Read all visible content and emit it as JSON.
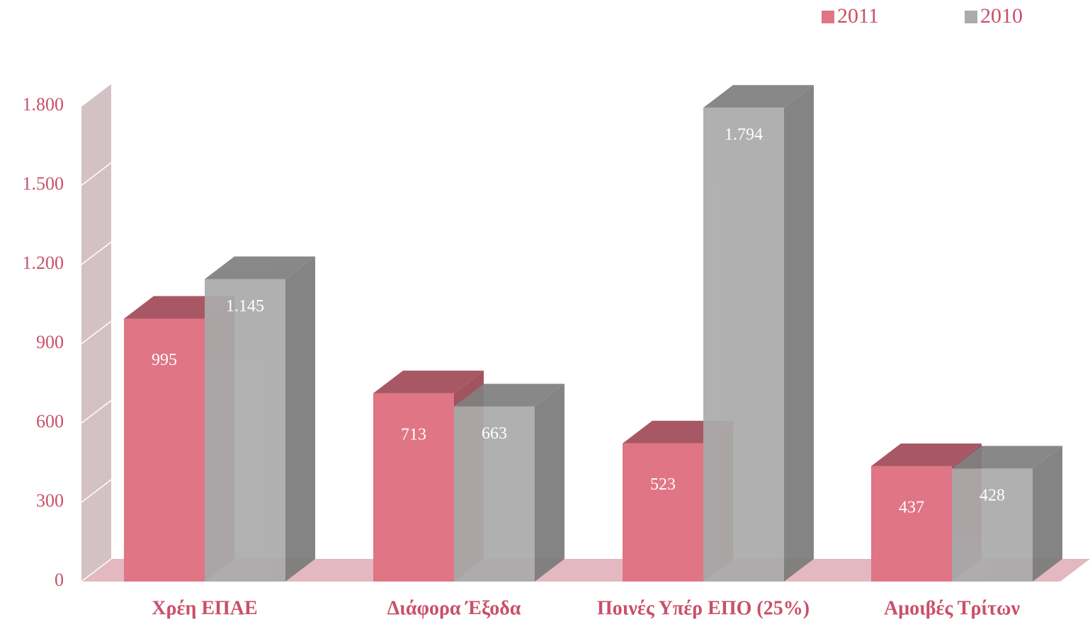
{
  "chart_data": {
    "type": "bar3d",
    "categories": [
      "Χρέη ΕΠΑΕ",
      "Διάφορα Έξοδα",
      "Ποινές Υπέρ ΕΠΟ (25%)",
      "Αμοιβές Τρίτων"
    ],
    "series": [
      {
        "name": "2011",
        "color": "#e07585",
        "values": [
          995,
          713,
          523,
          437
        ],
        "value_labels": [
          "995",
          "713",
          "523",
          "437"
        ]
      },
      {
        "name": "2010",
        "color": "#ababab",
        "values": [
          1145,
          663,
          1794,
          428
        ],
        "value_labels": [
          "1.145",
          "663",
          "1.794",
          "428"
        ]
      }
    ],
    "ylim": [
      0,
      1800
    ],
    "yticks": [
      0,
      300,
      600,
      900,
      {
        "value": 1200,
        "label": "1.200"
      },
      {
        "value": 1500,
        "label": "1.500"
      },
      {
        "value": 1800,
        "label": "1.800"
      }
    ],
    "grid": true,
    "legend": "top-right"
  }
}
